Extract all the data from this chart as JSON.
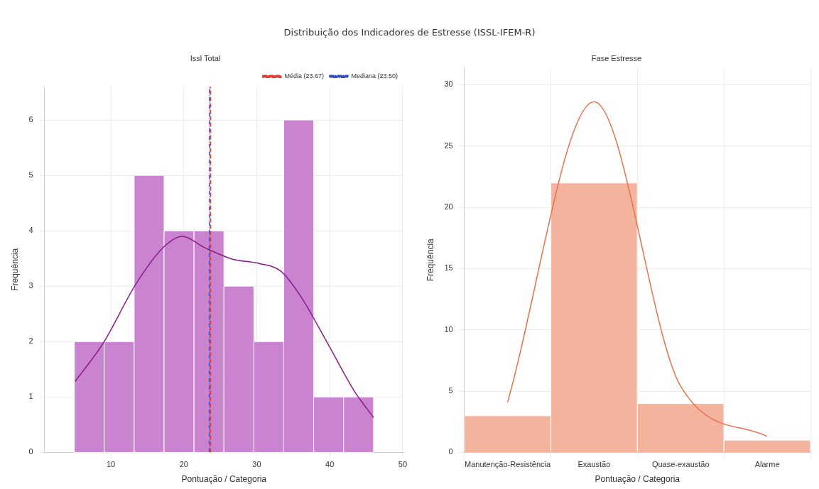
{
  "chart_data": [
    {
      "type": "histogram",
      "title": "Issl Total",
      "xlabel": "Pontuação / Categoria",
      "ylabel": "Frequência",
      "annotations": [
        "Distribuição dos Indicadores de Estresse (ISSL-IFEM-R)"
      ],
      "bins": [
        5,
        9.1,
        13.2,
        17.3,
        21.4,
        25.5,
        29.6,
        33.7,
        37.8,
        41.9,
        46
      ],
      "series": [
        {
          "type": "histogram",
          "color": "#c983cf",
          "values": [
            2,
            2,
            5,
            4,
            4,
            3,
            2,
            6,
            1,
            1
          ]
        },
        {
          "type": "line",
          "color": "#8b1a8b",
          "x": [
            5.1,
            8.95,
            13.4,
            17.2,
            19.8,
            22.8,
            26.6,
            30.3,
            33.3,
            35.9,
            39.7,
            43.4,
            46
          ],
          "values": [
            1.28,
            1.97,
            3.03,
            3.7,
            3.9,
            3.7,
            3.49,
            3.41,
            3.27,
            2.84,
            1.97,
            1.1,
            0.63
          ]
        }
      ],
      "ref_lines": [
        {
          "axis": "x",
          "value": 23.67,
          "label": "Média (23.67)",
          "color": "#e03c31",
          "line_style": "dashed"
        },
        {
          "axis": "x",
          "value": 23.5,
          "label": "Mediana (23.50)",
          "color": "#3b4cc0",
          "line_style": "dashdot"
        }
      ],
      "xlim": [
        0.9,
        50.1
      ],
      "xticks": [
        10,
        20,
        30,
        40,
        50
      ],
      "ylim": [
        0,
        6.6
      ],
      "yticks": [
        0,
        1,
        2,
        3,
        4,
        5,
        6
      ],
      "grid": true,
      "legend": "top right"
    },
    {
      "type": "bar",
      "title": "Fase Estresse",
      "xlabel": "Pontuação / Categoria",
      "ylabel": "Frequência",
      "categories": [
        "Manutenção-Resistência",
        "Exaustão",
        "Quase-exaustão",
        "Alarme"
      ],
      "series": [
        {
          "type": "bar",
          "color": "#f4b39c",
          "values": [
            3,
            22,
            4,
            1
          ]
        },
        {
          "type": "line",
          "color": "#e8704f",
          "values": [
            4.1,
            28.6,
            5.4,
            1.3
          ]
        }
      ],
      "ylim": [
        0,
        31.4
      ],
      "yticks": [
        0,
        5,
        10,
        15,
        20,
        25,
        30
      ],
      "grid": true,
      "legend": false
    }
  ]
}
